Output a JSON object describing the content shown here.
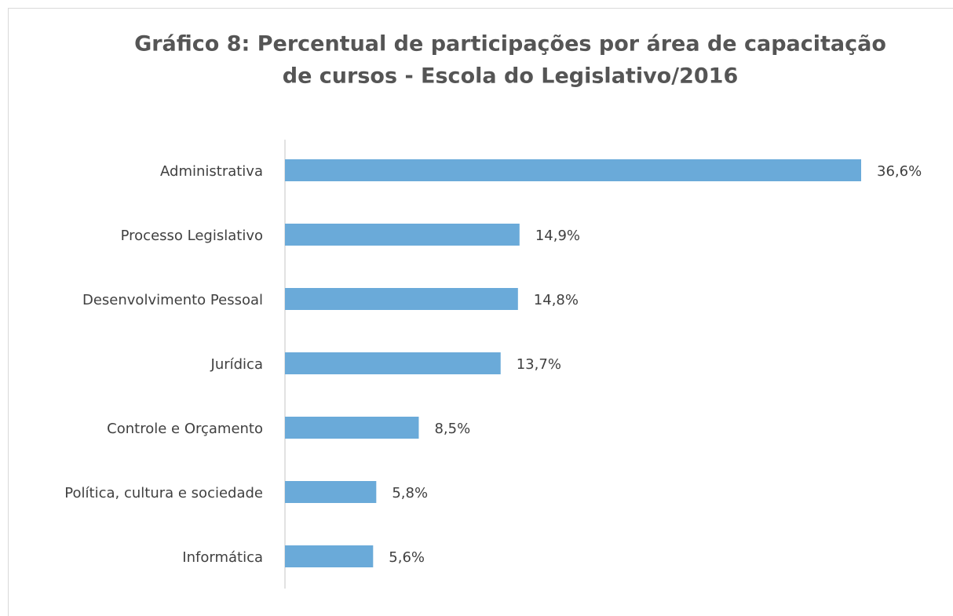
{
  "chart_data": {
    "type": "barh",
    "title": [
      "Gráfico 8: Percentual de participações por área de capacitação",
      "de cursos - Escola do Legislativo/2016"
    ],
    "categories": [
      "Administrativa",
      "Processo Legislativo",
      "Desenvolvimento Pessoal",
      "Jurídica",
      "Controle e Orçamento",
      "Política, cultura e sociedade",
      "Informática"
    ],
    "values": [
      36.6,
      14.9,
      14.8,
      13.7,
      8.5,
      5.8,
      5.6
    ],
    "value_labels": [
      "36,6%",
      "14,9%",
      "14,8%",
      "13,7%",
      "8,5%",
      "5,8%",
      "5,6%"
    ],
    "color": "#6aaad9"
  }
}
